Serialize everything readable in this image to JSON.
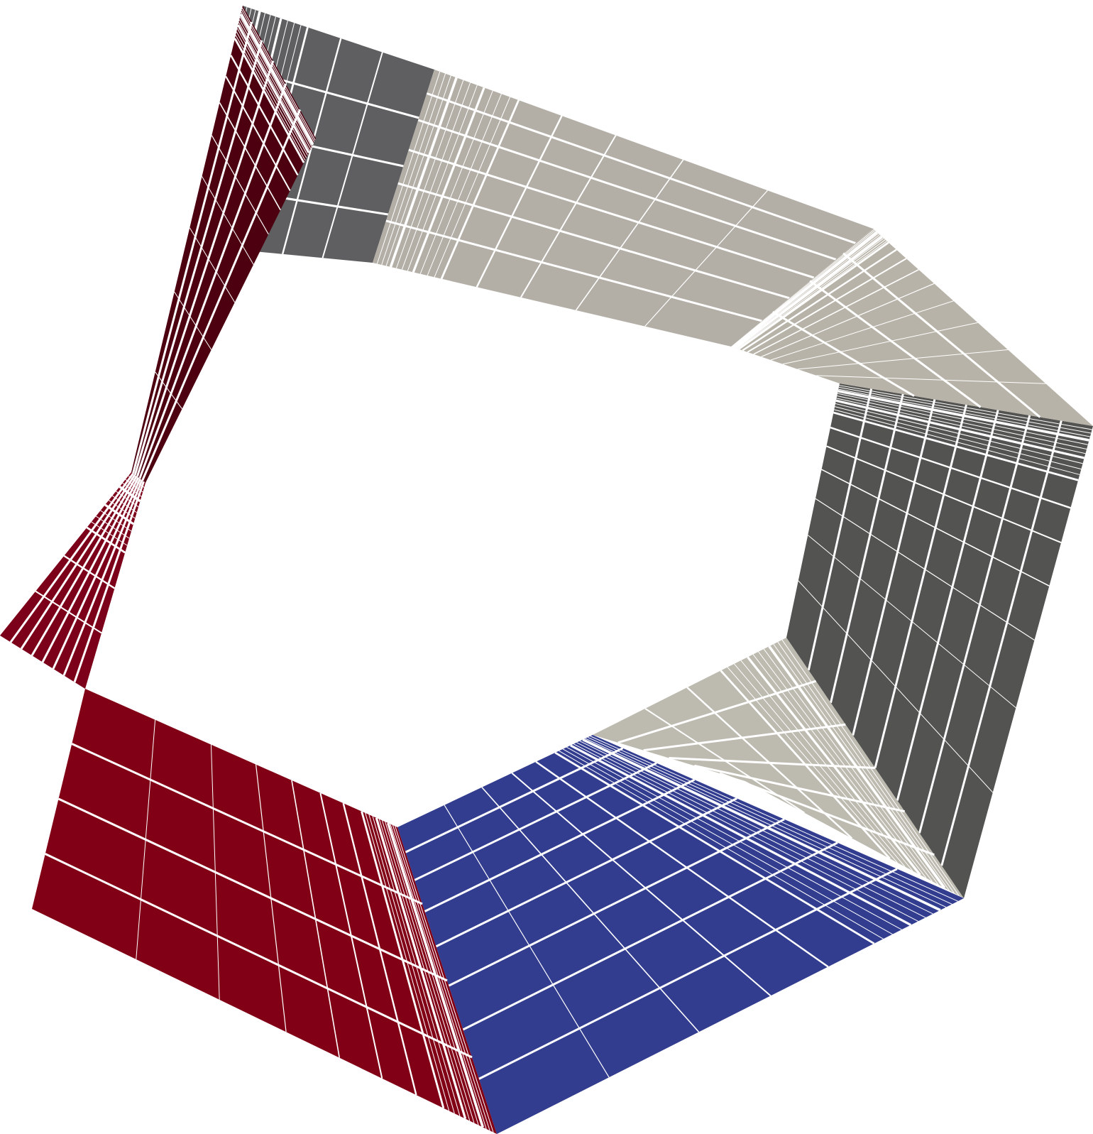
{
  "figure": {
    "kind": "adaptive-mesh-ring",
    "background": "#ffffff",
    "grid_line_color": "#ffffff"
  },
  "faces": [
    {
      "id": "face-top-inner-grey",
      "color": "#5f5f62",
      "refinement": [
        6,
        1
      ]
    },
    {
      "id": "face-top-outer-light",
      "color": "#b3afa7",
      "refinement": [
        5,
        1
      ]
    },
    {
      "id": "face-right-dark-grey",
      "color": "#535351",
      "refinement": [
        1,
        5
      ]
    },
    {
      "id": "face-top-right-light",
      "color": "#b8b3a8",
      "refinement": [
        3,
        1
      ]
    },
    {
      "id": "face-bottom-right-light",
      "color": "#bdbab0",
      "refinement": [
        1,
        6
      ]
    },
    {
      "id": "face-bottom-blue",
      "color": "#323d8f",
      "refinement": [
        1,
        7
      ]
    },
    {
      "id": "face-bottom-left-red",
      "color": "#820016",
      "refinement": [
        6,
        1
      ]
    },
    {
      "id": "face-left-dark-red",
      "color": "#4d0010",
      "refinement": [
        1,
        6
      ]
    },
    {
      "id": "face-left-red-twisted",
      "color": "#7c0019",
      "refinement": [
        6,
        1
      ]
    }
  ]
}
